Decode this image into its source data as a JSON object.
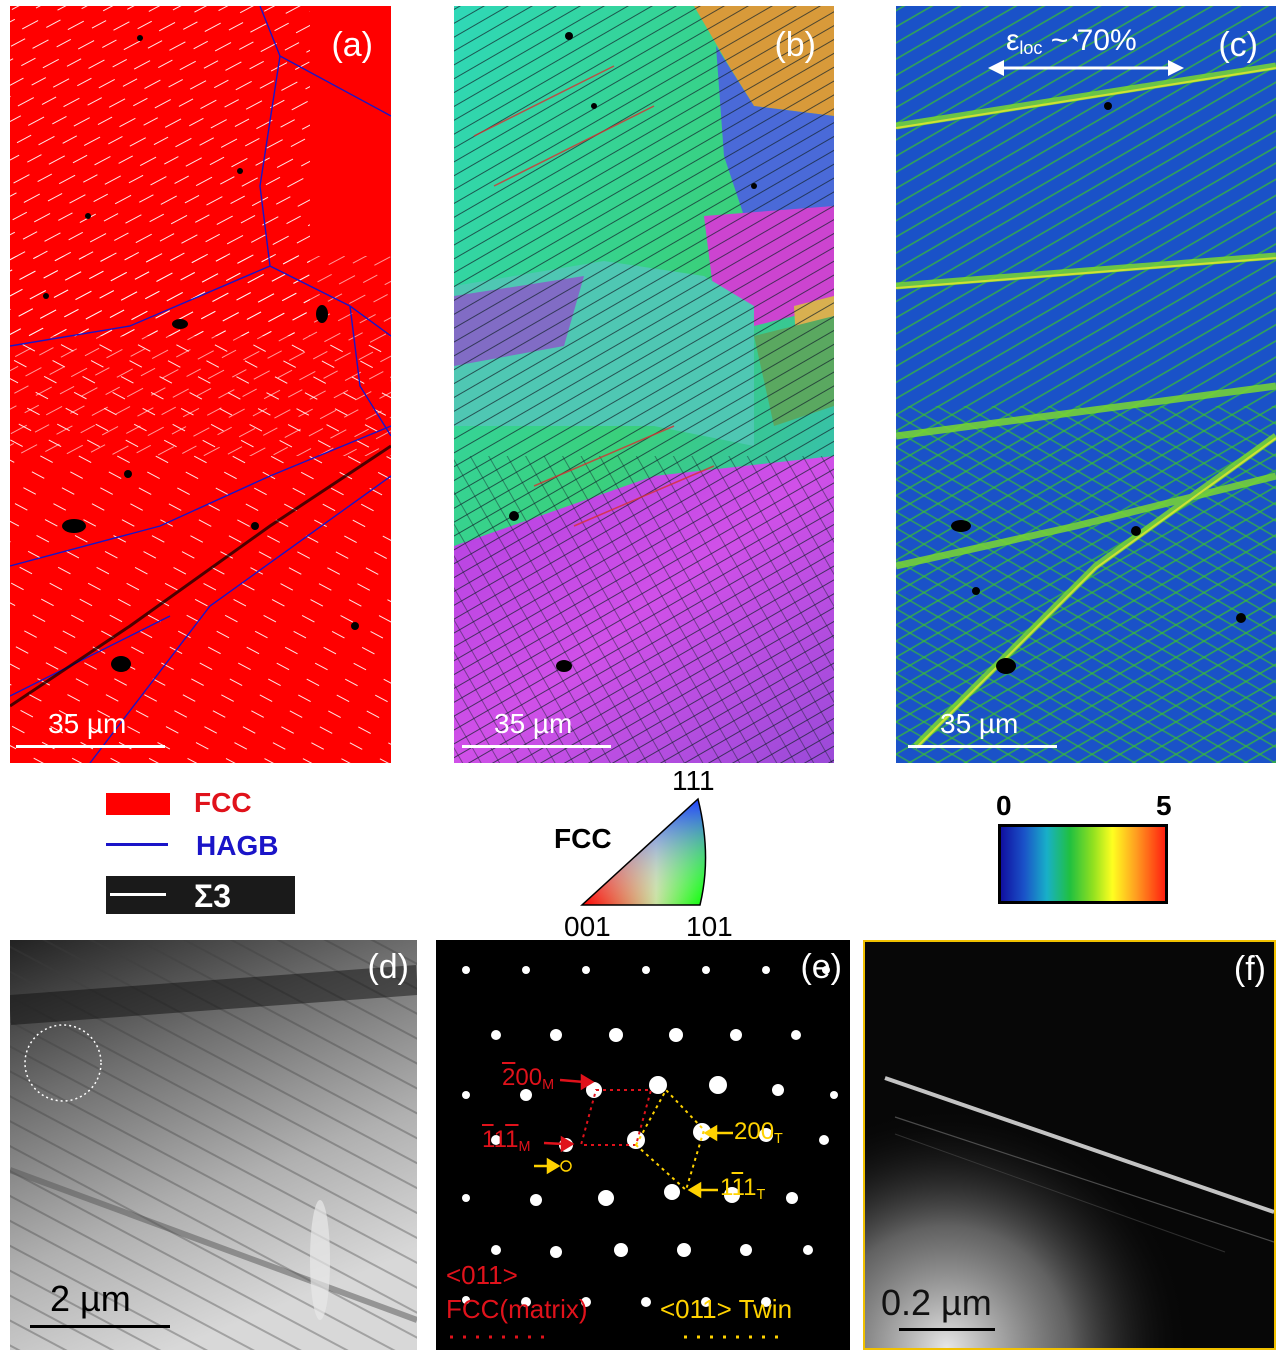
{
  "panels": {
    "a": {
      "label": "(a)",
      "scale": "35 µm"
    },
    "b": {
      "label": "(b)",
      "scale": "35 µm"
    },
    "c": {
      "label": "(c)",
      "scale": "35 µm",
      "strain_symbol": "ε",
      "strain_sub": "loc",
      "strain_value": " ~ 70%"
    },
    "d": {
      "label": "(d)",
      "scale": "2 µm"
    },
    "e": {
      "label": "(e)"
    },
    "f": {
      "label": "(f)",
      "scale": "0.2 µm"
    }
  },
  "phase_legend": {
    "fcc": "FCC",
    "hagb": "HAGB",
    "sigma3": "Σ3",
    "colors": {
      "fcc": "#ff0000",
      "hagb": "#1a14c8",
      "sigma3": "#ffffff"
    }
  },
  "ipf_key": {
    "phase": "FCC",
    "corner_111": "111",
    "corner_001": "001",
    "corner_101": "101"
  },
  "kam_colorbar": {
    "min": "0",
    "max": "5"
  },
  "saed": {
    "matrix_200": {
      "bar": "2",
      "rest": "00",
      "sub": "M"
    },
    "matrix_111": {
      "p1": "1",
      "p2": "1",
      "p3": "1",
      "sub": "M"
    },
    "twin_200": {
      "prefix": "200",
      "sub": "T"
    },
    "twin_111": {
      "p1": "1",
      "p2": "1",
      "p3": "1",
      "sub": "T"
    },
    "matrix_zone": "<011>",
    "matrix_name": "FCC(matrix)",
    "twin_zone": "<011> Twin"
  }
}
